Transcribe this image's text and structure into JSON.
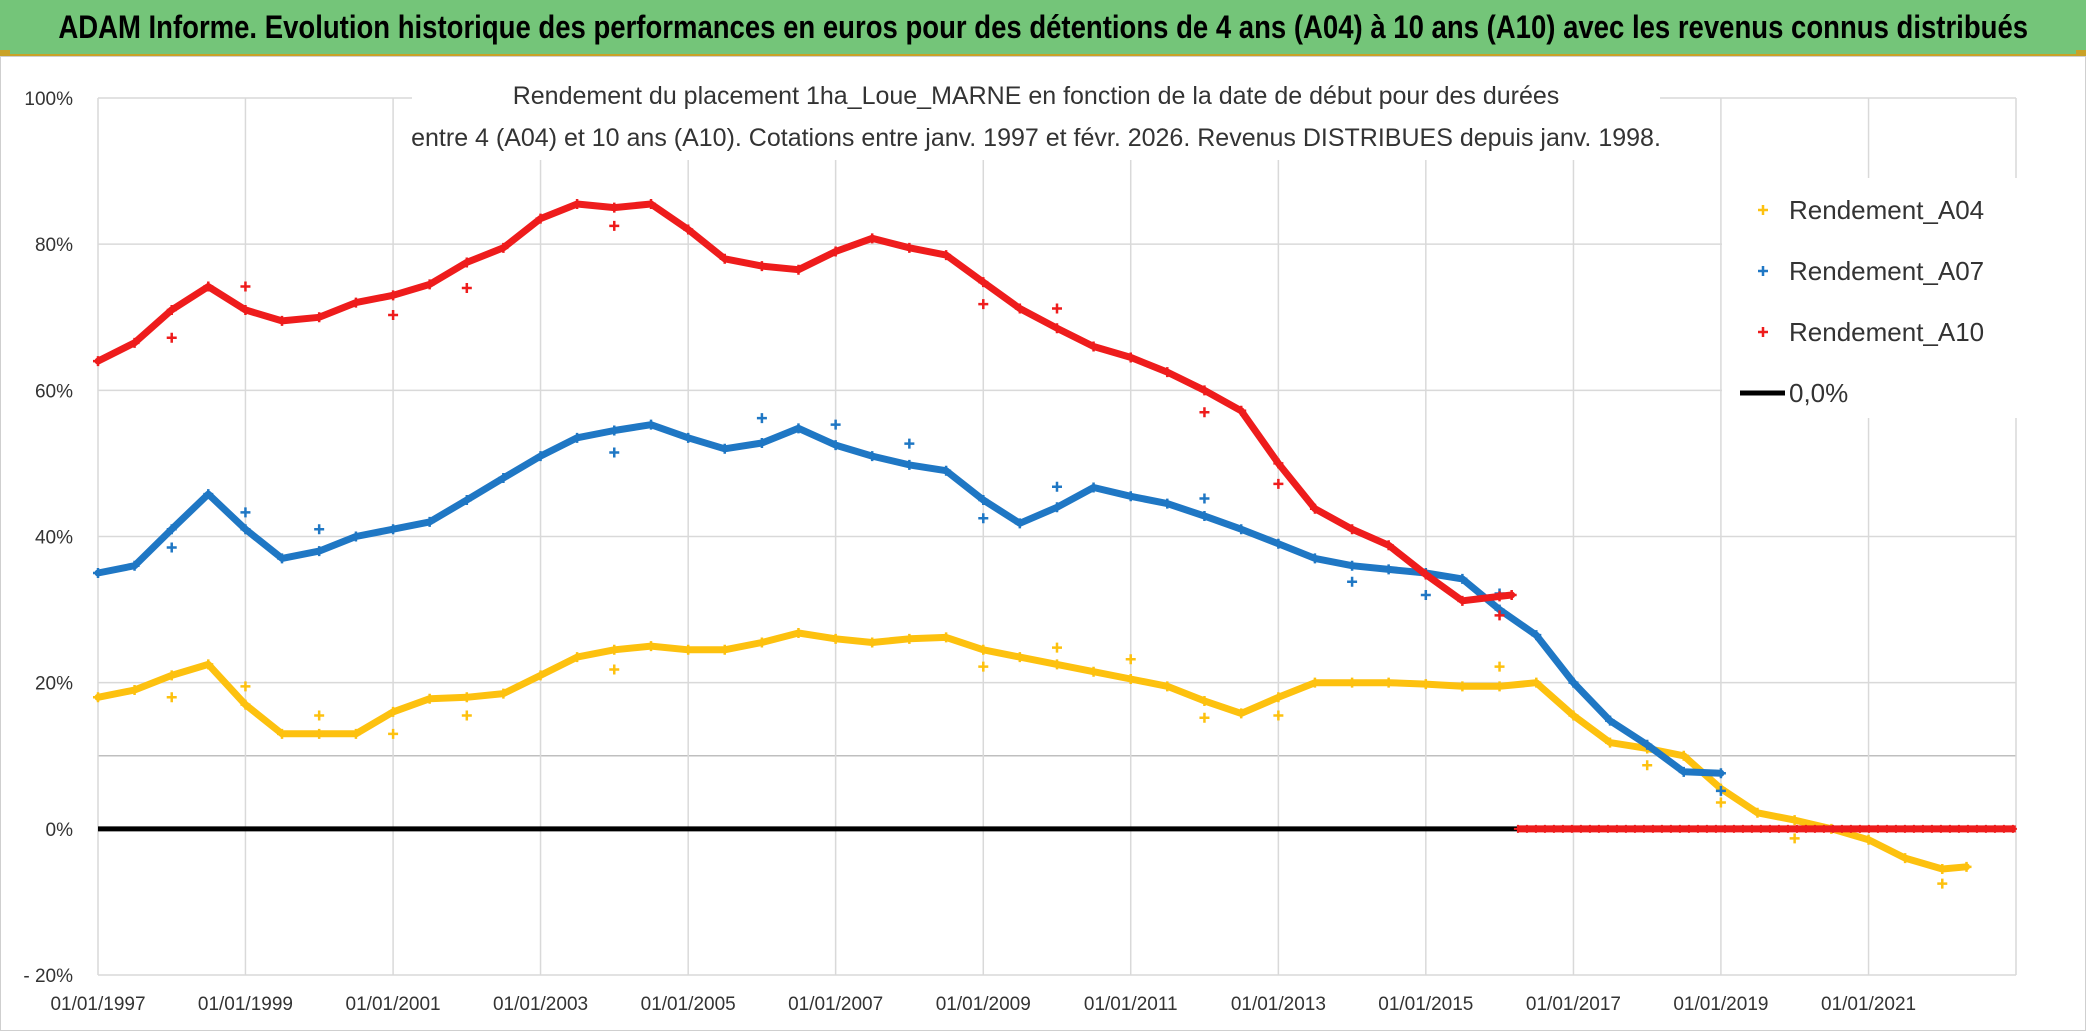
{
  "banner": {
    "text": "ADAM Informe. Evolution historique des performances en euros pour des détentions de 4 ans (A04) à 10 ans (A10) avec les revenus connus distribués"
  },
  "colors": {
    "banner_bg": "#74c579",
    "a04": "#fdc10f",
    "a07": "#1f77c4",
    "a10": "#ee1c1c",
    "zero": "#000000"
  },
  "chart_data": {
    "type": "scatter",
    "title_lines": [
      "Rendement du placement 1ha_Loue_MARNE en fonction de la date de début pour des durées",
      "entre 4 (A04) et 10 ans (A10). Cotations entre janv. 1997 et févr. 2026. Revenus DISTRIBUES depuis janv. 1998."
    ],
    "ylim": [
      -0.2,
      1.0
    ],
    "xlim": [
      "1997-01-01",
      "2023-01-01"
    ],
    "y_ticks": [
      "- 20%",
      "0%",
      "20%",
      "40%",
      "60%",
      "80%",
      "100%"
    ],
    "x_ticks": [
      "01/01/1997",
      "01/01/1999",
      "01/01/2001",
      "01/01/2003",
      "01/01/2005",
      "01/01/2007",
      "01/01/2009",
      "01/01/2011",
      "01/01/2013",
      "01/01/2015",
      "01/01/2017",
      "01/01/2019",
      "01/01/2021"
    ],
    "grid": true,
    "legend_position": "right",
    "series": [
      {
        "name": "Rendement_A04",
        "color": "#fdc10f",
        "points": [
          [
            "1997-01-01",
            0.18
          ],
          [
            "1997-07-01",
            0.19
          ],
          [
            "1998-01-01",
            0.21
          ],
          [
            "1998-07-01",
            0.225
          ],
          [
            "1999-01-01",
            0.17
          ],
          [
            "1999-07-01",
            0.13
          ],
          [
            "2000-01-01",
            0.13
          ],
          [
            "2000-07-01",
            0.13
          ],
          [
            "2001-01-01",
            0.16
          ],
          [
            "2001-07-01",
            0.178
          ],
          [
            "2002-01-01",
            0.18
          ],
          [
            "2002-07-01",
            0.185
          ],
          [
            "2003-01-01",
            0.21
          ],
          [
            "2003-07-01",
            0.235
          ],
          [
            "2004-01-01",
            0.245
          ],
          [
            "2004-07-01",
            0.25
          ],
          [
            "2005-01-01",
            0.245
          ],
          [
            "2005-07-01",
            0.245
          ],
          [
            "2006-01-01",
            0.255
          ],
          [
            "2006-07-01",
            0.268
          ],
          [
            "2007-01-01",
            0.26
          ],
          [
            "2007-07-01",
            0.255
          ],
          [
            "2008-01-01",
            0.26
          ],
          [
            "2008-07-01",
            0.262
          ],
          [
            "2009-01-01",
            0.245
          ],
          [
            "2009-07-01",
            0.235
          ],
          [
            "2010-01-01",
            0.225
          ],
          [
            "2010-07-01",
            0.215
          ],
          [
            "2011-01-01",
            0.205
          ],
          [
            "2011-07-01",
            0.195
          ],
          [
            "2012-01-01",
            0.175
          ],
          [
            "2012-07-01",
            0.158
          ],
          [
            "2013-01-01",
            0.18
          ],
          [
            "2013-07-01",
            0.2
          ],
          [
            "2014-01-01",
            0.2
          ],
          [
            "2014-07-01",
            0.2
          ],
          [
            "2015-01-01",
            0.198
          ],
          [
            "2015-07-01",
            0.195
          ],
          [
            "2016-01-01",
            0.195
          ],
          [
            "2016-07-01",
            0.2
          ],
          [
            "2017-01-01",
            0.155
          ],
          [
            "2017-07-01",
            0.118
          ],
          [
            "2018-01-01",
            0.11
          ],
          [
            "2018-07-01",
            0.1
          ],
          [
            "2019-01-01",
            0.055
          ],
          [
            "2019-07-01",
            0.022
          ],
          [
            "2020-01-01",
            0.012
          ],
          [
            "2020-07-01",
            0.0
          ],
          [
            "2021-01-01",
            -0.015
          ],
          [
            "2021-07-01",
            -0.04
          ],
          [
            "2022-01-01",
            -0.055
          ],
          [
            "2022-05-01",
            -0.052
          ]
        ],
        "outliers": [
          [
            "1998-01-01",
            0.18
          ],
          [
            "1999-01-01",
            0.195
          ],
          [
            "2000-01-01",
            0.155
          ],
          [
            "2001-01-01",
            0.13
          ],
          [
            "2002-01-01",
            0.155
          ],
          [
            "2004-01-01",
            0.218
          ],
          [
            "2009-01-01",
            0.222
          ],
          [
            "2010-01-01",
            0.248
          ],
          [
            "2011-01-01",
            0.232
          ],
          [
            "2012-01-01",
            0.152
          ],
          [
            "2013-01-01",
            0.155
          ],
          [
            "2016-01-01",
            0.222
          ],
          [
            "2018-01-01",
            0.087
          ],
          [
            "2019-01-01",
            0.036
          ],
          [
            "2020-01-01",
            -0.013
          ],
          [
            "2022-01-01",
            -0.075
          ]
        ]
      },
      {
        "name": "Rendement_A07",
        "color": "#1f77c4",
        "points": [
          [
            "1997-01-01",
            0.35
          ],
          [
            "1997-07-01",
            0.36
          ],
          [
            "1998-01-01",
            0.41
          ],
          [
            "1998-07-01",
            0.458
          ],
          [
            "1999-01-01",
            0.41
          ],
          [
            "1999-07-01",
            0.37
          ],
          [
            "2000-01-01",
            0.38
          ],
          [
            "2000-07-01",
            0.4
          ],
          [
            "2001-01-01",
            0.41
          ],
          [
            "2001-07-01",
            0.42
          ],
          [
            "2002-01-01",
            0.45
          ],
          [
            "2002-07-01",
            0.48
          ],
          [
            "2003-01-01",
            0.51
          ],
          [
            "2003-07-01",
            0.535
          ],
          [
            "2004-01-01",
            0.545
          ],
          [
            "2004-07-01",
            0.553
          ],
          [
            "2005-01-01",
            0.535
          ],
          [
            "2005-07-01",
            0.52
          ],
          [
            "2006-01-01",
            0.528
          ],
          [
            "2006-07-01",
            0.548
          ],
          [
            "2007-01-01",
            0.525
          ],
          [
            "2007-07-01",
            0.51
          ],
          [
            "2008-01-01",
            0.498
          ],
          [
            "2008-07-01",
            0.49
          ],
          [
            "2009-01-01",
            0.45
          ],
          [
            "2009-07-01",
            0.418
          ],
          [
            "2010-01-01",
            0.44
          ],
          [
            "2010-07-01",
            0.467
          ],
          [
            "2011-01-01",
            0.455
          ],
          [
            "2011-07-01",
            0.445
          ],
          [
            "2012-01-01",
            0.428
          ],
          [
            "2012-07-01",
            0.41
          ],
          [
            "2013-01-01",
            0.39
          ],
          [
            "2013-07-01",
            0.37
          ],
          [
            "2014-01-01",
            0.36
          ],
          [
            "2014-07-01",
            0.355
          ],
          [
            "2015-01-01",
            0.35
          ],
          [
            "2015-07-01",
            0.342
          ],
          [
            "2016-01-01",
            0.3
          ],
          [
            "2016-07-01",
            0.265
          ],
          [
            "2017-01-01",
            0.2
          ],
          [
            "2017-07-01",
            0.148
          ],
          [
            "2018-01-01",
            0.115
          ],
          [
            "2018-07-01",
            0.078
          ],
          [
            "2019-01-01",
            0.076
          ]
        ],
        "outliers": [
          [
            "1998-01-01",
            0.385
          ],
          [
            "1999-01-01",
            0.433
          ],
          [
            "2000-01-01",
            0.41
          ],
          [
            "2004-01-01",
            0.515
          ],
          [
            "2006-01-01",
            0.562
          ],
          [
            "2007-01-01",
            0.553
          ],
          [
            "2008-01-01",
            0.527
          ],
          [
            "2009-01-01",
            0.425
          ],
          [
            "2010-01-01",
            0.468
          ],
          [
            "2012-01-01",
            0.452
          ],
          [
            "2014-01-01",
            0.338
          ],
          [
            "2015-01-01",
            0.32
          ],
          [
            "2016-01-01",
            0.322
          ],
          [
            "2019-01-01",
            0.052
          ]
        ]
      },
      {
        "name": "Rendement_A10",
        "color": "#ee1c1c",
        "points": [
          [
            "1997-01-01",
            0.64
          ],
          [
            "1997-07-01",
            0.665
          ],
          [
            "1998-01-01",
            0.71
          ],
          [
            "1998-07-01",
            0.742
          ],
          [
            "1999-01-01",
            0.71
          ],
          [
            "1999-07-01",
            0.695
          ],
          [
            "2000-01-01",
            0.7
          ],
          [
            "2000-07-01",
            0.72
          ],
          [
            "2001-01-01",
            0.73
          ],
          [
            "2001-07-01",
            0.745
          ],
          [
            "2002-01-01",
            0.775
          ],
          [
            "2002-07-01",
            0.795
          ],
          [
            "2003-01-01",
            0.835
          ],
          [
            "2003-07-01",
            0.855
          ],
          [
            "2004-01-01",
            0.85
          ],
          [
            "2004-07-01",
            0.855
          ],
          [
            "2005-01-01",
            0.82
          ],
          [
            "2005-07-01",
            0.78
          ],
          [
            "2006-01-01",
            0.77
          ],
          [
            "2006-07-01",
            0.765
          ],
          [
            "2007-01-01",
            0.79
          ],
          [
            "2007-07-01",
            0.808
          ],
          [
            "2008-01-01",
            0.795
          ],
          [
            "2008-07-01",
            0.785
          ],
          [
            "2009-01-01",
            0.748
          ],
          [
            "2009-07-01",
            0.712
          ],
          [
            "2010-01-01",
            0.685
          ],
          [
            "2010-07-01",
            0.66
          ],
          [
            "2011-01-01",
            0.645
          ],
          [
            "2011-07-01",
            0.625
          ],
          [
            "2012-01-01",
            0.6
          ],
          [
            "2012-07-01",
            0.572
          ],
          [
            "2013-01-01",
            0.5
          ],
          [
            "2013-07-01",
            0.438
          ],
          [
            "2014-01-01",
            0.41
          ],
          [
            "2014-07-01",
            0.388
          ],
          [
            "2015-01-01",
            0.348
          ],
          [
            "2015-07-01",
            0.312
          ],
          [
            "2016-01-01",
            0.318
          ],
          [
            "2016-03-01",
            0.32
          ]
        ],
        "outliers": [
          [
            "1998-01-01",
            0.672
          ],
          [
            "1999-01-01",
            0.742
          ],
          [
            "2001-01-01",
            0.703
          ],
          [
            "2002-01-01",
            0.74
          ],
          [
            "2004-01-01",
            0.825
          ],
          [
            "2009-01-01",
            0.718
          ],
          [
            "2010-01-01",
            0.712
          ],
          [
            "2012-01-01",
            0.57
          ],
          [
            "2013-01-01",
            0.472
          ],
          [
            "2016-01-01",
            0.292
          ]
        ],
        "zero_segment": [
          "2016-04-01",
          "2022-12-31"
        ]
      },
      {
        "name": "0,0%",
        "color": "#000000",
        "segment": [
          "1997-01-01",
          "2016-04-01"
        ],
        "value": 0.0
      }
    ]
  }
}
